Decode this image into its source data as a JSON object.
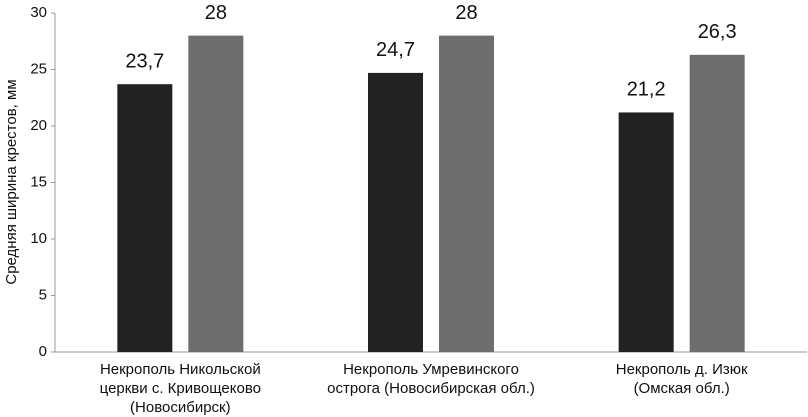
{
  "chart_data": {
    "type": "bar",
    "y_label": "Средняя ширина крестов, мм",
    "categories": [
      [
        "Некрополь Никольской",
        "церкви с. Кривощеково",
        "(Новосибирск)"
      ],
      [
        "Некрополь Умревинского",
        "острога (Новосибирская обл.)"
      ],
      [
        "Некрополь д. Изюк",
        "(Омская обл.)"
      ]
    ],
    "series": [
      {
        "color": "#222222",
        "values": [
          23.7,
          24.7,
          21.2
        ],
        "value_labels": [
          "23,7",
          "24,7",
          "21,2"
        ]
      },
      {
        "color": "#6e6e6e",
        "values": [
          28,
          28,
          26.3
        ],
        "value_labels": [
          "28",
          "28",
          "26,3"
        ]
      }
    ],
    "ylim": [
      0,
      30
    ],
    "yticks": [
      0,
      5,
      10,
      15,
      20,
      25,
      30
    ],
    "grid": false
  }
}
